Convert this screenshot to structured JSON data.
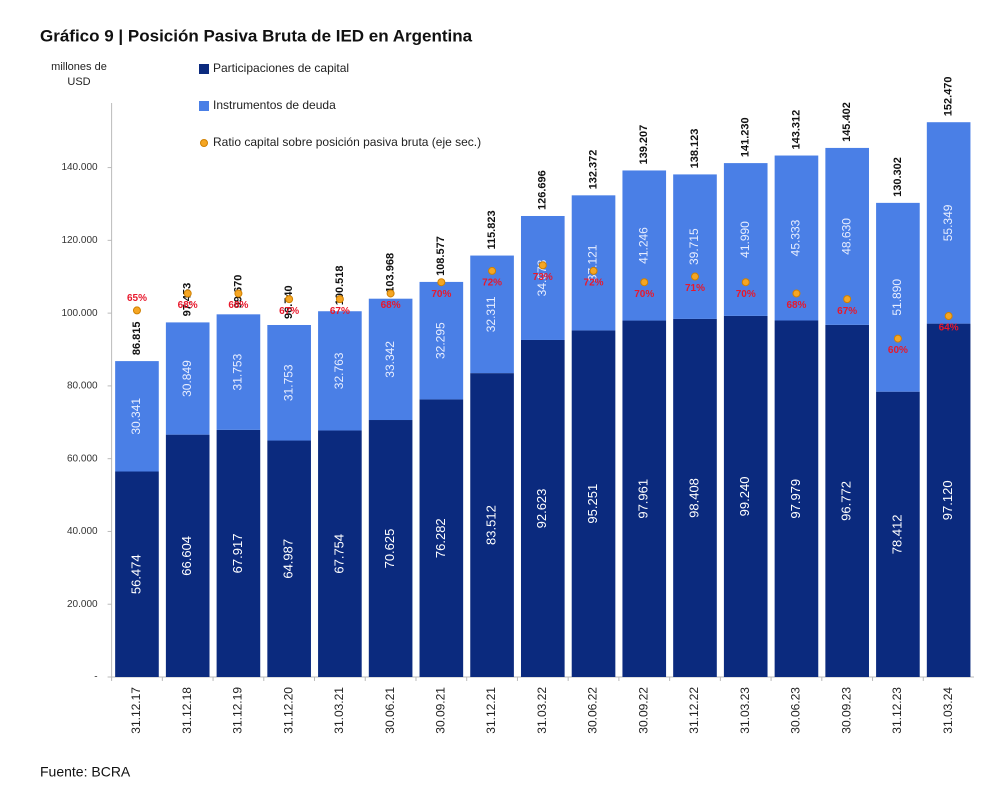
{
  "chart_data": {
    "type": "stacked-bar",
    "title": "Gráfico 9 | Posición Pasiva Bruta de IED en Argentina",
    "y_label": "millones de USD",
    "source": "Fuente: BCRA",
    "categories": [
      "31.12.17",
      "31.12.18",
      "31.12.19",
      "31.12.20",
      "31.03.21",
      "30.06.21",
      "30.09.21",
      "31.12.21",
      "31.03.22",
      "30.06.22",
      "30.09.22",
      "31.12.22",
      "31.03.23",
      "30.06.23",
      "30.09.23",
      "31.12.23",
      "31.03.24"
    ],
    "series": [
      {
        "name": "Participaciones de capital",
        "color": "#0b2a7e",
        "values": [
          56474,
          66604,
          67917,
          64987,
          67754,
          70625,
          76282,
          83512,
          92623,
          95251,
          97961,
          98408,
          99240,
          97979,
          96772,
          78412,
          97120
        ],
        "value_labels": [
          "56.474",
          "66.604",
          "67.917",
          "64.987",
          "67.754",
          "70.625",
          "76.282",
          "83.512",
          "92.623",
          "95.251",
          "97.961",
          "98.408",
          "99.240",
          "97.979",
          "96.772",
          "78.412",
          "97.120"
        ]
      },
      {
        "name": "Instrumentos de deuda",
        "color": "#4a7fe6",
        "values": [
          30341,
          30849,
          31753,
          31753,
          32763,
          33342,
          32295,
          32311,
          34073,
          37121,
          41246,
          39715,
          41990,
          45333,
          48630,
          51890,
          55349
        ],
        "value_labels": [
          "30.341",
          "30.849",
          "31.753",
          "31.753",
          "32.763",
          "33.342",
          "32.295",
          "32.311",
          "34.073",
          "37.121",
          "41.246",
          "39.715",
          "41.990",
          "45.333",
          "48.630",
          "51.890",
          "55.349"
        ]
      },
      {
        "name": "Ratio capital sobre posición pasiva bruta (eje sec.)",
        "color": "#f5a623",
        "type": "scatter",
        "axis": "y2",
        "label_color": "#e8182c",
        "values": [
          65,
          68,
          68,
          67,
          67,
          68,
          70,
          72,
          73,
          72,
          70,
          71,
          70,
          68,
          67,
          60,
          64
        ],
        "value_labels": [
          "65%",
          "68%",
          "68%",
          "67%",
          "67%",
          "68%",
          "70%",
          "72%",
          "73%",
          "72%",
          "70%",
          "71%",
          "70%",
          "68%",
          "67%",
          "60%",
          "64%"
        ]
      }
    ],
    "totals": {
      "values": [
        86815,
        97453,
        99670,
        96740,
        100518,
        103968,
        108577,
        115823,
        126696,
        132372,
        139207,
        138123,
        141230,
        143312,
        145402,
        130302,
        152470
      ],
      "value_labels": [
        "86.815",
        "97.453",
        "99.670",
        "96.740",
        "100.518",
        "103.968",
        "108.577",
        "115.823",
        "126.696",
        "132.372",
        "139.207",
        "138.123",
        "141.230",
        "143.312",
        "145.402",
        "130.302",
        "152.470"
      ]
    },
    "ylim": [
      0,
      155000
    ],
    "yticks": [
      {
        "value": 0,
        "label": "-"
      },
      {
        "value": 20000,
        "label": "20.000"
      },
      {
        "value": 40000,
        "label": "40.000"
      },
      {
        "value": 60000,
        "label": "60.000"
      },
      {
        "value": 80000,
        "label": "80.000"
      },
      {
        "value": 100000,
        "label": "100.000"
      },
      {
        "value": 120000,
        "label": "120.000"
      },
      {
        "value": 140000,
        "label": "140.000"
      }
    ],
    "y2lim": [
      0,
      100
    ],
    "grid": false
  }
}
